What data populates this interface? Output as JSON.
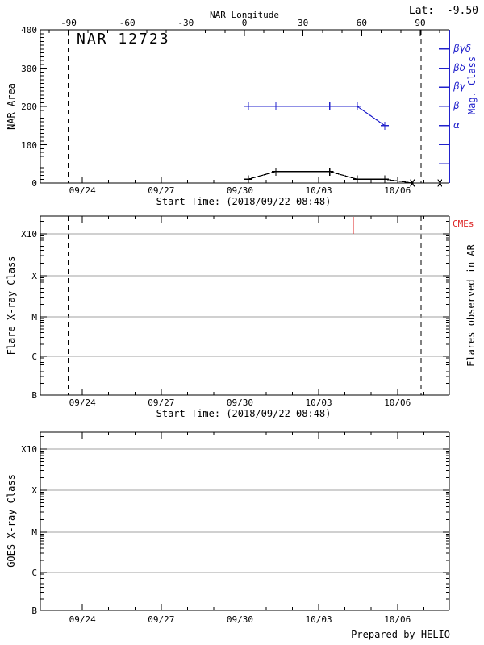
{
  "figure": {
    "lat_label": "Lat:  -9.50",
    "credit": "Prepared by HELIO",
    "start_time_label": "Start Time: (2018/09/22 08:48)",
    "colors": {
      "blue": "#2222cc",
      "red": "#dd2222",
      "grid": "#a0a0a0",
      "axis": "#000000",
      "background": "#ffffff"
    }
  },
  "time_axis": {
    "date_ticks": [
      {
        "label": "09/24",
        "day_offset": 1.6333
      },
      {
        "label": "09/27",
        "day_offset": 4.6333
      },
      {
        "label": "09/30",
        "day_offset": 7.6333
      },
      {
        "label": "10/03",
        "day_offset": 10.6333
      },
      {
        "label": "10/06",
        "day_offset": 13.6333
      }
    ],
    "first_minor_day_offset": 0.6333,
    "minor_step_days": 1,
    "span_days": 15.6
  },
  "chart_data": [
    {
      "id": "nar-area-panel",
      "type": "line",
      "title": "NAR 12723",
      "ylabel": "NAR Area",
      "ylim": [
        0,
        400
      ],
      "ytick_values": [
        0,
        100,
        200,
        300,
        400
      ],
      "ytick_labels": [
        "0",
        "100",
        "200",
        "300",
        "400"
      ],
      "top_axis": {
        "title": "NAR Longitude",
        "tick_degrees": [
          -90,
          -60,
          -30,
          0,
          30,
          60,
          90
        ],
        "minor_step_degrees": 10
      },
      "right_axis": {
        "title": "Mag. Class",
        "tick_values": [
          50,
          100,
          150,
          200,
          250,
          300,
          350
        ],
        "tick_labels": [
          "",
          "",
          "α",
          "β",
          "βγ",
          "βδ",
          "βγδ"
        ]
      },
      "limb_crossing_day_offsets": [
        1.09,
        14.53
      ],
      "series": [
        {
          "name": "NAR Area",
          "color": "#000000",
          "day_offsets": [
            7.95,
            9.0,
            10.0,
            11.05,
            12.1,
            13.15,
            14.2,
            15.25
          ],
          "values": [
            10,
            30,
            30,
            30,
            10,
            10,
            0,
            0
          ],
          "markers": [
            "plus",
            "plus",
            "plus",
            "plus",
            "plus",
            "plus",
            "star",
            "star"
          ]
        },
        {
          "name": "Mag. Class",
          "color": "#2222cc",
          "day_offsets": [
            7.95,
            9.0,
            10.0,
            11.05,
            12.1,
            13.15
          ],
          "values": [
            200,
            200,
            200,
            200,
            200,
            150
          ],
          "mag_classes": [
            "β",
            "β",
            "β",
            "β",
            "β",
            "α"
          ],
          "markers": [
            "plus",
            "plus",
            "plus",
            "plus",
            "plus",
            "plus"
          ]
        }
      ]
    },
    {
      "id": "flare-panel",
      "type": "events",
      "ylabel": "Flare X-ray Class",
      "right_label": "Flares observed in AR",
      "cme_label": "CMEs",
      "class_tick_labels": [
        "B",
        "C",
        "M",
        "X",
        "X10"
      ],
      "limb_crossing_day_offsets": [
        1.09,
        14.53
      ],
      "cme_day_offsets": [
        11.95
      ],
      "flare_events": []
    },
    {
      "id": "goes-panel",
      "type": "events",
      "ylabel": "GOES X-ray Class",
      "class_tick_labels": [
        "B",
        "C",
        "M",
        "X",
        "X10"
      ],
      "cme_day_offsets": [],
      "flare_events": []
    }
  ]
}
